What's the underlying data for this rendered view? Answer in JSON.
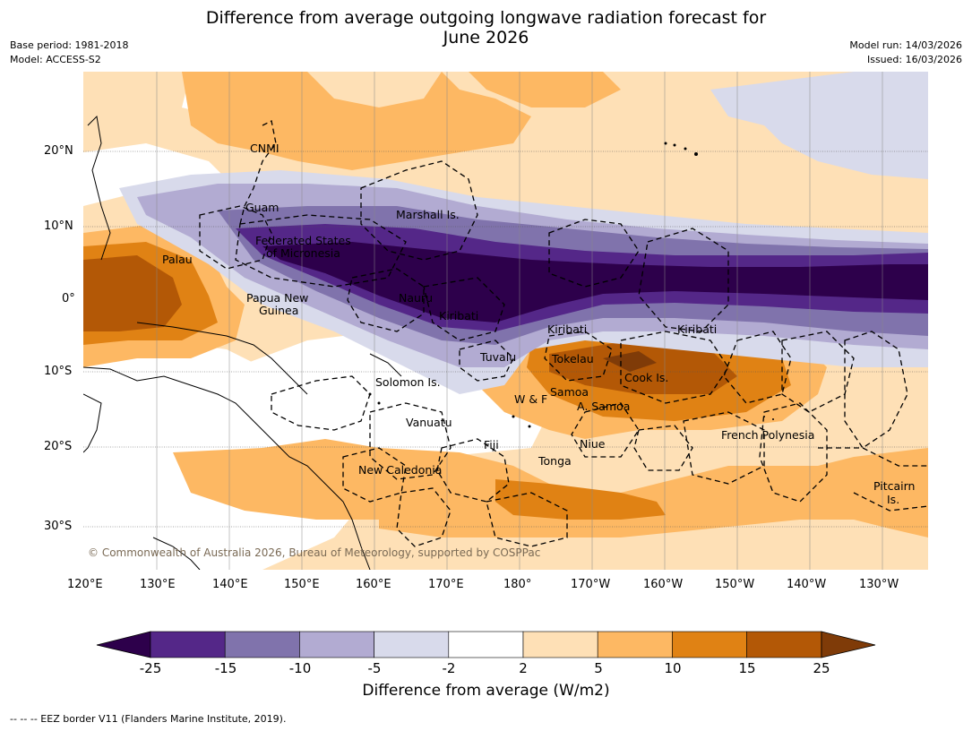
{
  "title": {
    "line1": "Difference from average outgoing longwave radiation forecast for",
    "line2": "June 2026"
  },
  "meta": {
    "base_period": "Base period: 1981-2018",
    "model": "Model: ACCESS-S2",
    "model_run": "Model run: 14/03/2026",
    "issued": "Issued: 16/03/2026"
  },
  "axes": {
    "lon_ticks": [
      "120°E",
      "130°E",
      "140°E",
      "150°E",
      "160°E",
      "170°E",
      "180°",
      "170°W",
      "160°W",
      "150°W",
      "140°W",
      "130°W"
    ],
    "lat_ticks": [
      "20°N",
      "10°N",
      "0°",
      "10°S",
      "20°S",
      "30°S"
    ]
  },
  "regions": [
    "CNMI",
    "Guam",
    "Marshall Is.",
    "Federated States",
    "of Micronesia",
    "Palau",
    "Papua New",
    "Guinea",
    "Nauru",
    "Kiribati",
    "Kiribati",
    "Kiribati",
    "Tuvalu",
    "Tokelau",
    "Cook Is.",
    "Solomon Is.",
    "W & F",
    "Samoa",
    "A. Samoa",
    "Vanuatu",
    "Fiji",
    "Niue",
    "Tonga",
    "New Caledonia",
    "French Polynesia",
    "Pitcairn",
    "Is."
  ],
  "copyright": "© Commonwealth of Australia 2026, Bureau of Meteorology, supported by COSPPac",
  "colorbar": {
    "labels": [
      "-25",
      "-15",
      "-10",
      "-5",
      "-2",
      "2",
      "5",
      "10",
      "15",
      "25"
    ],
    "colors": [
      "#2d004b",
      "#542788",
      "#8073ac",
      "#b2abd2",
      "#d8daeb",
      "#ffffff",
      "#fee0b6",
      "#fdb863",
      "#e08214",
      "#b35806",
      "#7f3b08"
    ],
    "title": "Difference from average (W/m2)"
  },
  "footer": "--  --  -- EEZ border V11 (Flanders Marine Institute, 2019)."
}
